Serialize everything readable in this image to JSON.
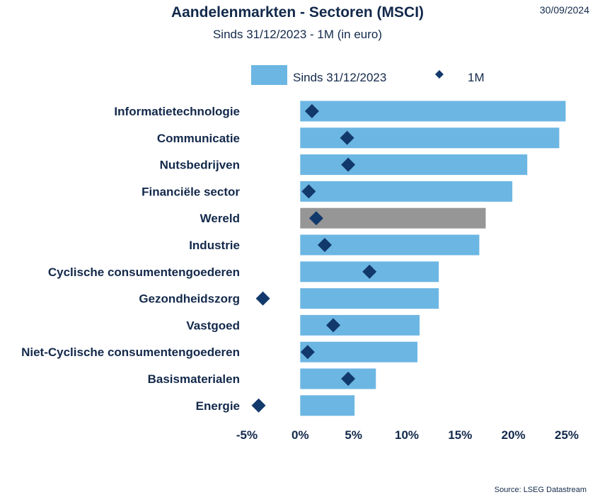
{
  "header": {
    "title": "Aandelenmarkten - Sectoren (MSCI)",
    "subtitle": "Sinds 31/12/2023 - 1M (in euro)",
    "date": "30/09/2024"
  },
  "footer": {
    "source": "Source: LSEG Datastream"
  },
  "colors": {
    "bar": "#6cb6e3",
    "bar_highlight": "#969696",
    "marker": "#12396b",
    "text": "#13294b"
  },
  "chart_data": {
    "type": "bar",
    "orientation": "horizontal",
    "categories": [
      "Informatietechnologie",
      "Communicatie",
      "Nutsbedrijven",
      "Financiële sector",
      "Wereld",
      "Industrie",
      "Cyclische consumentengoederen",
      "Gezondheidszorg",
      "Vastgoed",
      "Niet-Cyclische consumentengoederen",
      "Basismaterialen",
      "Energie"
    ],
    "highlight_category": "Wereld",
    "series": [
      {
        "name": "Sinds 31/12/2023",
        "mark": "bar",
        "values": [
          24.9,
          24.3,
          21.3,
          19.9,
          17.4,
          16.8,
          13.0,
          13.0,
          11.2,
          11.0,
          7.1,
          5.1
        ]
      },
      {
        "name": "1M",
        "mark": "diamond",
        "values": [
          1.1,
          4.4,
          4.5,
          0.8,
          1.5,
          2.3,
          6.5,
          -3.5,
          3.1,
          0.7,
          4.5,
          -3.9
        ]
      }
    ],
    "xlim": [
      -5,
      25
    ],
    "xticks": [
      -5,
      0,
      5,
      10,
      15,
      20,
      25
    ],
    "xtick_labels": [
      "-5%",
      "0%",
      "5%",
      "10%",
      "15%",
      "20%",
      "25%"
    ],
    "legend": {
      "position": "top"
    },
    "grid": false
  }
}
